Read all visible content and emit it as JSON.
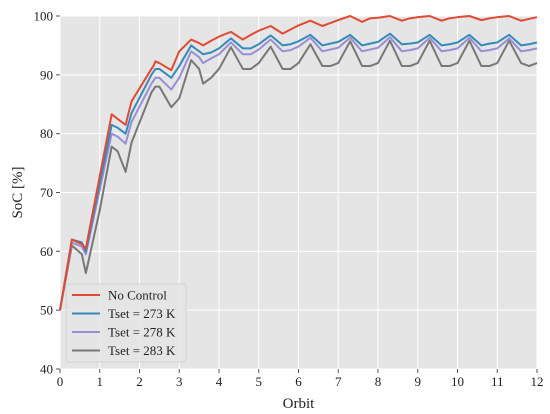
{
  "chart_data": {
    "type": "line",
    "title": "",
    "xlabel": "Orbit",
    "ylabel": "SoC [%]",
    "xlim": [
      0,
      12
    ],
    "ylim": [
      40,
      100
    ],
    "xticks": [
      "0",
      "1",
      "2",
      "3",
      "4",
      "5",
      "6",
      "7",
      "8",
      "9",
      "10",
      "11",
      "12"
    ],
    "yticks": [
      "40",
      "50",
      "60",
      "70",
      "80",
      "90",
      "100"
    ],
    "grid": true,
    "legend_position": "bottom-left",
    "colors": {
      "background": "#e5e5e5",
      "grid": "#ffffff",
      "No Control": "#e24a33",
      "Tset = 273 K": "#348abd",
      "Tset = 278 K": "#988ed5",
      "Tset = 283 K": "#777777"
    },
    "series": [
      {
        "name": "No Control",
        "x": [
          0,
          0.3,
          0.55,
          0.65,
          1.3,
          1.45,
          1.65,
          1.8,
          2.3,
          2.35,
          2.4,
          2.5,
          2.8,
          3.0,
          3.3,
          3.5,
          3.6,
          3.8,
          4.0,
          4.3,
          4.6,
          4.8,
          5.0,
          5.3,
          5.6,
          5.8,
          6.0,
          6.3,
          6.6,
          6.8,
          7.0,
          7.3,
          7.6,
          7.8,
          8.0,
          8.3,
          8.6,
          8.8,
          9.0,
          9.3,
          9.6,
          9.8,
          10.0,
          10.3,
          10.6,
          10.8,
          11.0,
          11.3,
          11.6,
          11.8,
          12.0
        ],
        "y": [
          50,
          62,
          61.2,
          60.5,
          83.3,
          82.5,
          81.5,
          85.5,
          91,
          91.5,
          92.3,
          92,
          90.8,
          94,
          96,
          95.4,
          95,
          95.8,
          96.5,
          97.3,
          96,
          96.8,
          97.5,
          98.3,
          97,
          97.7,
          98.4,
          99.2,
          98.3,
          98.8,
          99.3,
          100,
          99,
          99.6,
          99.7,
          100,
          99.2,
          99.6,
          99.8,
          100,
          99.2,
          99.6,
          99.8,
          100,
          99.3,
          99.6,
          99.8,
          100,
          99.2,
          99.5,
          99.8
        ]
      },
      {
        "name": "Tset = 273 K",
        "x": [
          0,
          0.3,
          0.55,
          0.65,
          1.3,
          1.45,
          1.65,
          1.8,
          2.3,
          2.35,
          2.4,
          2.5,
          2.8,
          3.0,
          3.3,
          3.5,
          3.6,
          3.8,
          4.0,
          4.3,
          4.6,
          4.8,
          5.0,
          5.3,
          5.6,
          5.8,
          6.0,
          6.3,
          6.6,
          6.8,
          7.0,
          7.3,
          7.6,
          7.8,
          8.0,
          8.3,
          8.6,
          8.8,
          9.0,
          9.3,
          9.6,
          9.8,
          10.0,
          10.3,
          10.6,
          10.8,
          11.0,
          11.3,
          11.6,
          11.8,
          12.0
        ],
        "y": [
          50,
          62,
          61.5,
          60,
          81.5,
          81,
          80,
          83.5,
          90,
          90.5,
          91,
          91,
          89.5,
          91.5,
          95,
          94,
          93.5,
          93.8,
          94.5,
          96.2,
          94.5,
          94.5,
          95.2,
          96.7,
          95,
          95.2,
          95.7,
          96.8,
          95,
          95.3,
          95.6,
          96.8,
          95,
          95.3,
          95.6,
          97,
          95.2,
          95.3,
          95.5,
          96.8,
          95,
          95.2,
          95.5,
          96.8,
          95,
          95.3,
          95.5,
          96.8,
          95,
          95.2,
          95.5
        ]
      },
      {
        "name": "Tset = 278 K",
        "x": [
          0,
          0.3,
          0.55,
          0.65,
          1.3,
          1.45,
          1.65,
          1.8,
          2.3,
          2.35,
          2.4,
          2.5,
          2.8,
          3.0,
          3.3,
          3.5,
          3.6,
          3.8,
          4.0,
          4.3,
          4.6,
          4.8,
          5.0,
          5.3,
          5.6,
          5.8,
          6.0,
          6.3,
          6.6,
          6.8,
          7.0,
          7.3,
          7.6,
          7.8,
          8.0,
          8.3,
          8.6,
          8.8,
          9.0,
          9.3,
          9.6,
          9.8,
          10.0,
          10.3,
          10.6,
          10.8,
          11.0,
          11.3,
          11.6,
          11.8,
          12.0
        ],
        "y": [
          50,
          61.5,
          60.8,
          59.5,
          80,
          79.5,
          78.3,
          82,
          88.5,
          89,
          89.5,
          89.5,
          87.5,
          89.5,
          94,
          93,
          92,
          92.8,
          93.5,
          95.5,
          93.5,
          93.5,
          94.3,
          96,
          94,
          94.2,
          94.8,
          96.3,
          94,
          94.3,
          94.6,
          96.3,
          94,
          94.3,
          94.6,
          96.4,
          94,
          94.2,
          94.5,
          96.3,
          94,
          94.2,
          94.5,
          96.3,
          94,
          94.2,
          94.5,
          96.2,
          94,
          94.2,
          94.5
        ]
      },
      {
        "name": "Tset = 283 K",
        "x": [
          0,
          0.3,
          0.55,
          0.65,
          1.0,
          1.3,
          1.45,
          1.65,
          1.8,
          2.3,
          2.35,
          2.4,
          2.5,
          2.8,
          3.0,
          3.3,
          3.5,
          3.6,
          3.8,
          4.0,
          4.3,
          4.6,
          4.8,
          5.0,
          5.3,
          5.6,
          5.8,
          6.0,
          6.3,
          6.6,
          6.8,
          7.0,
          7.3,
          7.6,
          7.8,
          8.0,
          8.3,
          8.6,
          8.8,
          9.0,
          9.3,
          9.6,
          9.8,
          10.0,
          10.3,
          10.6,
          10.8,
          11.0,
          11.3,
          11.6,
          11.8,
          12.0
        ],
        "y": [
          50,
          61,
          59.5,
          56.3,
          67,
          77.8,
          77,
          73.5,
          78.5,
          87,
          87.5,
          88,
          88,
          84.5,
          86,
          92.5,
          91,
          88.5,
          89.5,
          91,
          94.7,
          91,
          91,
          92,
          94.8,
          91,
          91,
          92,
          95.2,
          91.5,
          91.5,
          92,
          95.7,
          91.5,
          91.5,
          92,
          95.8,
          91.5,
          91.5,
          92,
          95.8,
          91.5,
          91.5,
          92,
          95.8,
          91.5,
          91.5,
          92,
          95.8,
          92,
          91.5,
          92
        ]
      }
    ]
  }
}
